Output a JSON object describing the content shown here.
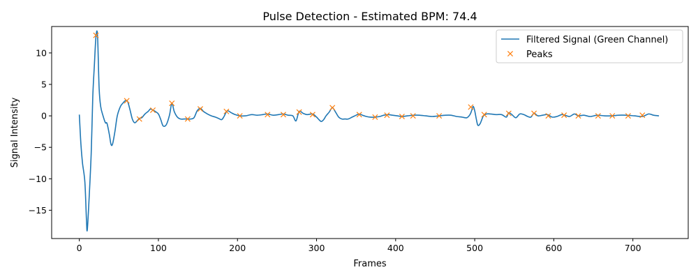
{
  "colors": {
    "signal": "#1f77b4",
    "peaks": "#ff7f0e",
    "axis": "#000000",
    "background": "#ffffff"
  },
  "chart_data": {
    "type": "line",
    "title": "Pulse Detection - Estimated BPM: 74.4",
    "xlabel": "Frames",
    "ylabel": "Signal Intensity",
    "xlim": [
      -35,
      770
    ],
    "ylim": [
      -19.5,
      14.2
    ],
    "xticks": [
      0,
      100,
      200,
      300,
      400,
      500,
      600,
      700
    ],
    "yticks": [
      -15,
      -10,
      -5,
      0,
      5,
      10
    ],
    "grid": false,
    "legend_position": "top-right",
    "legend": [
      "Filtered Signal (Green Channel)",
      "Peaks"
    ],
    "series": [
      {
        "name": "Filtered Signal (Green Channel)",
        "kind": "line",
        "color": "#1f77b4",
        "x": [
          0,
          2,
          4,
          7,
          9,
          10,
          12,
          15,
          17,
          19,
          21,
          23,
          25,
          27,
          30,
          33,
          35,
          38,
          40,
          42,
          45,
          48,
          52,
          55,
          58,
          61,
          64,
          67,
          70,
          73,
          76,
          79,
          83,
          87,
          90,
          93,
          96,
          100,
          103,
          106,
          110,
          114,
          117,
          120,
          124,
          128,
          133,
          137,
          141,
          145,
          149,
          153,
          157,
          162,
          167,
          172,
          176,
          180,
          183,
          187,
          192,
          197,
          203,
          210,
          218,
          225,
          232,
          238,
          245,
          252,
          258,
          264,
          270,
          274,
          278,
          283,
          288,
          295,
          300,
          303,
          306,
          309,
          312,
          316,
          320,
          324,
          328,
          332,
          336,
          340,
          345,
          350,
          354,
          358,
          363,
          368,
          374,
          380,
          385,
          390,
          396,
          402,
          408,
          415,
          422,
          430,
          438,
          446,
          455,
          463,
          470,
          477,
          484,
          490,
          494,
          496,
          498,
          500,
          502,
          504,
          507,
          511,
          515,
          520,
          527,
          534,
          540,
          543,
          547,
          552,
          557,
          562,
          567,
          571,
          575,
          580,
          586,
          592,
          598,
          604,
          610,
          614,
          620,
          626,
          631,
          638,
          646,
          655,
          664,
          673,
          682,
          692,
          702,
          712,
          720,
          726,
          733
        ],
        "y": [
          0.2,
          -4.5,
          -7.5,
          -10.5,
          -16.5,
          -18.2,
          -14,
          -6,
          3,
          8,
          12.5,
          12.8,
          4.5,
          1.5,
          0,
          -1.1,
          -1.2,
          -3.0,
          -4.5,
          -4.5,
          -2.5,
          0,
          1.5,
          2.0,
          2.4,
          2.3,
          1.0,
          -0.5,
          -1.1,
          -0.8,
          -0.4,
          -0.3,
          0.3,
          0.7,
          1.1,
          0.9,
          0.7,
          0.3,
          -0.6,
          -1.6,
          -1.4,
          0.1,
          2.0,
          0.7,
          -0.2,
          -0.5,
          -0.5,
          -0.5,
          -0.5,
          -0.3,
          0.8,
          1.2,
          0.7,
          0.3,
          0,
          -0.2,
          -0.4,
          -0.6,
          -0.1,
          0.8,
          0.5,
          0.2,
          0,
          0,
          0.2,
          0.1,
          0.2,
          0.3,
          0.1,
          0.2,
          0.3,
          0.1,
          0,
          -0.8,
          0.7,
          0.4,
          0.2,
          0.3,
          -0.2,
          -0.6,
          -0.9,
          -0.6,
          0,
          0.6,
          1.3,
          0.6,
          -0.2,
          -0.5,
          -0.5,
          -0.5,
          -0.2,
          0.1,
          0.3,
          0.1,
          -0.1,
          -0.2,
          -0.2,
          -0.1,
          0.1,
          0.2,
          0.1,
          0,
          -0.1,
          0,
          0.1,
          0.1,
          0,
          -0.1,
          0,
          0.1,
          0.1,
          -0.1,
          -0.2,
          -0.3,
          0.2,
          0.8,
          1.5,
          0.8,
          -0.5,
          -1.5,
          -1.2,
          0,
          0.3,
          0.3,
          0.2,
          0.2,
          -0.2,
          0.5,
          0.2,
          -0.3,
          0.3,
          0.2,
          -0.1,
          -0.2,
          0.4,
          0,
          0.1,
          0.2,
          -0.2,
          -0.1,
          0.2,
          0.1,
          -0.1,
          0.3,
          0,
          0.1,
          -0.1,
          0.1,
          0,
          0,
          0.1,
          0.1,
          0,
          -0.1,
          0.3,
          0.1,
          0
        ]
      },
      {
        "name": "Peaks",
        "kind": "markers",
        "color": "#ff7f0e",
        "x": [
          21,
          60,
          76,
          93,
          117,
          137,
          153,
          186,
          203,
          238,
          258,
          278,
          295,
          320,
          354,
          374,
          389,
          408,
          422,
          455,
          495,
          512,
          543,
          575,
          593,
          613,
          631,
          656,
          674,
          694,
          712
        ],
        "y": [
          12.8,
          2.4,
          -0.5,
          0.9,
          2.0,
          -0.5,
          1.1,
          0.7,
          0.0,
          0.2,
          0.2,
          0.6,
          0.2,
          1.3,
          0.2,
          -0.2,
          0.1,
          -0.1,
          0.0,
          0.0,
          1.4,
          0.2,
          0.4,
          0.4,
          0.0,
          0.1,
          0.0,
          0.0,
          0.0,
          0.0,
          0.1
        ]
      }
    ]
  }
}
